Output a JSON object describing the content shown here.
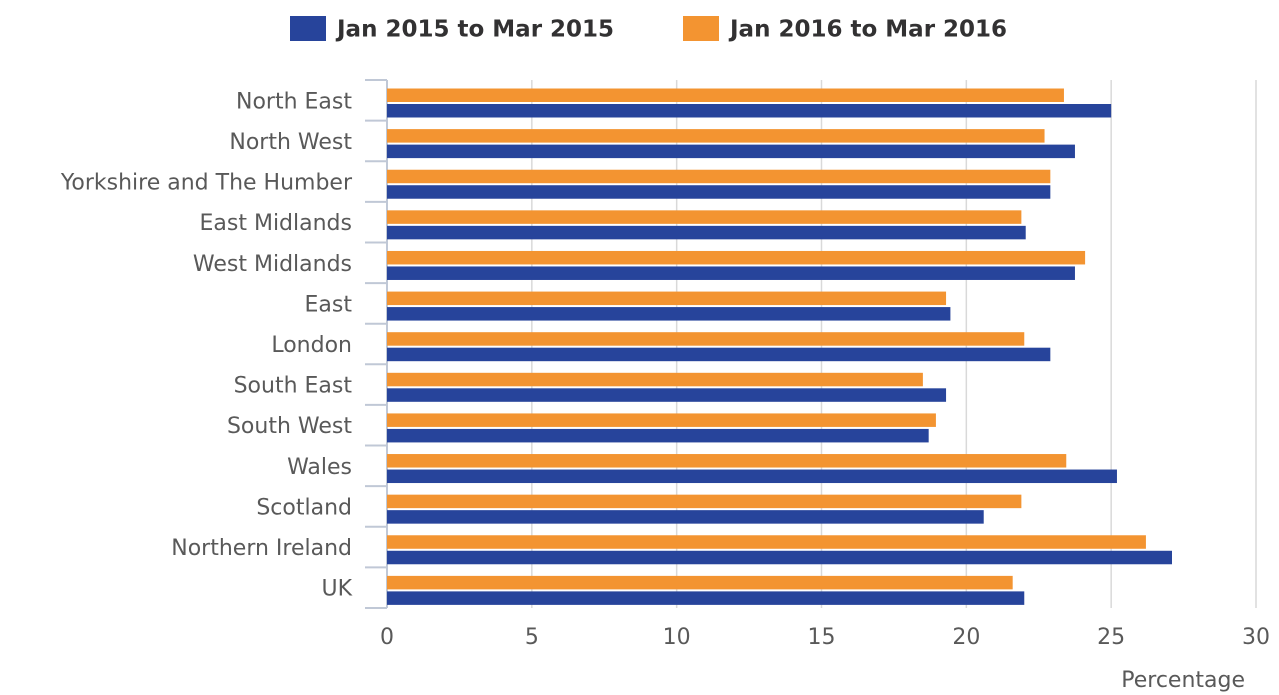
{
  "chart_data": {
    "type": "bar",
    "orientation": "horizontal",
    "categories": [
      "North East",
      "North West",
      "Yorkshire and The Humber",
      "East Midlands",
      "West Midlands",
      "East",
      "London",
      "South East",
      "South West",
      "Wales",
      "Scotland",
      "Northern Ireland",
      "UK"
    ],
    "series": [
      {
        "name": "Jan 2015 to Mar 2015",
        "color": "#27449b",
        "values": [
          25.0,
          23.75,
          22.9,
          22.05,
          23.75,
          19.45,
          22.9,
          19.3,
          18.7,
          25.2,
          20.6,
          27.1,
          22.0
        ]
      },
      {
        "name": "Jan 2016 to Mar 2016",
        "color": "#f39431",
        "values": [
          23.37,
          22.7,
          22.9,
          21.9,
          24.1,
          19.3,
          22.0,
          18.5,
          18.95,
          23.45,
          21.9,
          26.2,
          21.6
        ]
      }
    ],
    "xlabel": "Percentage",
    "xlim": [
      0,
      30
    ],
    "xticks": [
      0,
      5,
      10,
      15,
      20,
      25,
      30
    ],
    "grid": true
  }
}
